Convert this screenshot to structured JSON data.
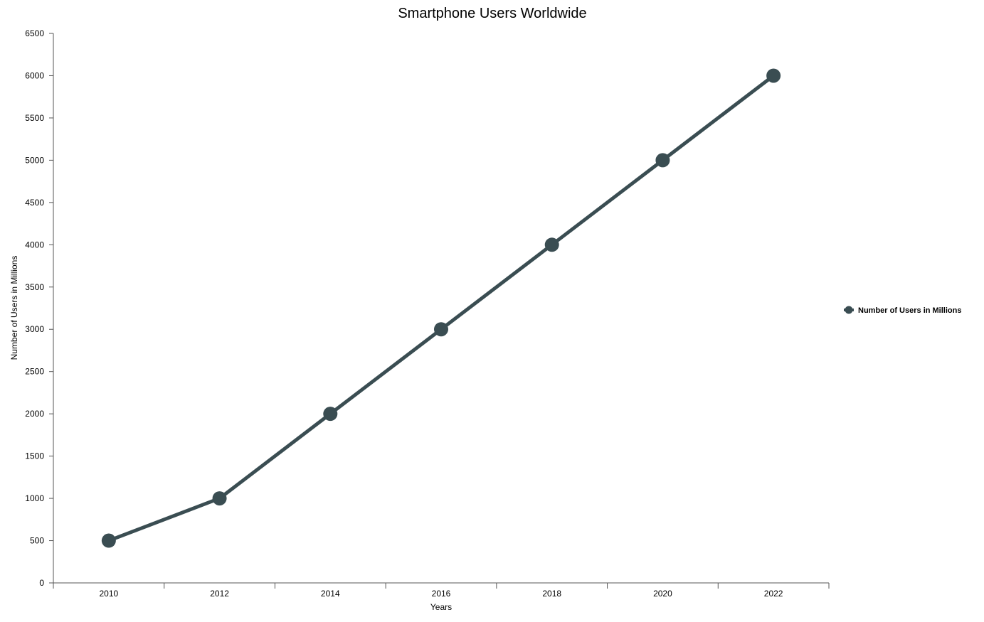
{
  "chart_data": {
    "type": "line",
    "title": "Smartphone Users Worldwide",
    "xlabel": "Years",
    "ylabel": "Number of Users in Millions",
    "categories": [
      "2010",
      "2012",
      "2014",
      "2016",
      "2018",
      "2020",
      "2022"
    ],
    "series": [
      {
        "name": "Number of Users in Millions",
        "values": [
          500,
          1000,
          2000,
          3000,
          4000,
          5000,
          6000
        ],
        "color": "#3a4d52"
      }
    ],
    "ylim": [
      0,
      6500
    ],
    "yticks": [
      0,
      500,
      1000,
      1500,
      2000,
      2500,
      3000,
      3500,
      4000,
      4500,
      5000,
      5500,
      6000,
      6500
    ],
    "grid": false,
    "legend_position": "right"
  }
}
